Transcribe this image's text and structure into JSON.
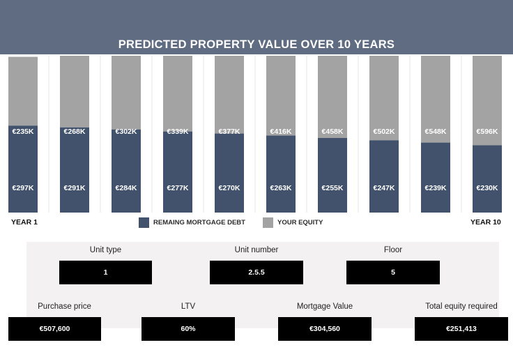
{
  "chart_data": {
    "type": "bar",
    "stacked": true,
    "title": "PREDICTED PROPERTY VALUE OVER 10 YEARS",
    "x_start_label": "YEAR 1",
    "x_end_label": "YEAR 10",
    "series": [
      {
        "name": "REMAING MORTGAGE DEBT",
        "color": "#42526c",
        "values": [
          297,
          291,
          284,
          277,
          270,
          263,
          255,
          247,
          239,
          230
        ],
        "labels": [
          "€297K",
          "€291K",
          "€284K",
          "€277K",
          "€270K",
          "€263K",
          "€255K",
          "€247K",
          "€239K",
          "€230K"
        ]
      },
      {
        "name": "YOUR EQUITY",
        "color": "#a3a3a3",
        "values": [
          235,
          268,
          302,
          339,
          377,
          416,
          458,
          502,
          548,
          596
        ],
        "labels": [
          "€235K",
          "€268K",
          "€302K",
          "€339K",
          "€377K",
          "€416K",
          "€458K",
          "€502K",
          "€548K",
          "€596K"
        ]
      }
    ],
    "legend_position": "bottom",
    "grid": "vertical"
  },
  "details": {
    "unit_type": {
      "label": "Unit type",
      "value": "1"
    },
    "unit_number": {
      "label": "Unit number",
      "value": "2.5.5"
    },
    "floor": {
      "label": "Floor",
      "value": "5"
    },
    "purchase_price": {
      "label": "Purchase price",
      "value": "€507,600"
    },
    "ltv": {
      "label": "LTV",
      "value": "60%"
    },
    "mortgage_value": {
      "label": "Mortgage Value",
      "value": "€304,560"
    },
    "total_equity": {
      "label": "Total equity required",
      "value": "€251,413"
    }
  }
}
